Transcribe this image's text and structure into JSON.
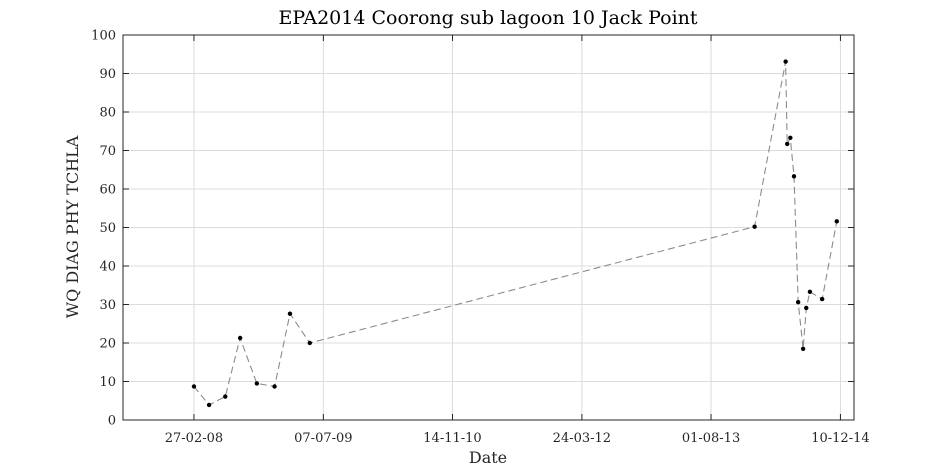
{
  "chart_data": {
    "type": "line",
    "title": "EPA2014 Coorong sub lagoon 10 Jack Point",
    "xlabel": "Date",
    "ylabel": "WQ DIAG PHY TCHLA",
    "ylim": [
      0,
      100
    ],
    "yticks": [
      0,
      10,
      20,
      30,
      40,
      50,
      60,
      70,
      80,
      90,
      100
    ],
    "xlim": [
      "2007-05-31",
      "2015-01-31"
    ],
    "xticks": [
      {
        "date": "2008-02-27",
        "label": "27-02-08"
      },
      {
        "date": "2009-07-07",
        "label": "07-07-09"
      },
      {
        "date": "2010-11-14",
        "label": "14-11-10"
      },
      {
        "date": "2012-03-24",
        "label": "24-03-12"
      },
      {
        "date": "2013-08-01",
        "label": "01-08-13"
      },
      {
        "date": "2014-12-10",
        "label": "10-12-14"
      }
    ],
    "grid": true,
    "line_style": "dashed",
    "colors": {
      "line": "#8c8c8c",
      "marker": "#000000",
      "grid": "#dcdcdc",
      "axis": "#262626"
    },
    "series": [
      {
        "x": [
          "2008-02-27",
          "2008-04-25",
          "2008-06-26",
          "2008-08-22",
          "2008-10-25",
          "2009-01-01",
          "2009-03-01",
          "2009-05-16",
          "2014-01-15",
          "2014-05-14",
          "2014-05-20",
          "2014-06-01",
          "2014-06-15",
          "2014-07-01",
          "2014-07-20",
          "2014-08-01",
          "2014-08-15",
          "2014-10-01",
          "2014-11-26"
        ],
        "y": [
          8.7,
          3.9,
          6.1,
          21.3,
          9.5,
          8.7,
          27.6,
          20.0,
          50.2,
          93.1,
          71.7,
          73.3,
          63.3,
          30.6,
          18.5,
          29.1,
          33.3,
          31.4,
          51.6
        ]
      }
    ]
  }
}
